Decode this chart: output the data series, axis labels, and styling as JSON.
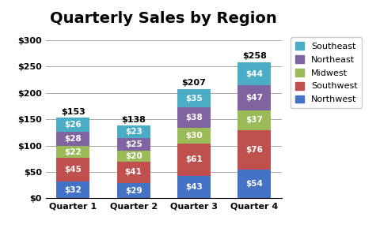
{
  "title": "Quarterly Sales by Region",
  "categories": [
    "Quarter 1",
    "Quarter 2",
    "Quarter 3",
    "Quarter 4"
  ],
  "regions": [
    "Northwest",
    "Southwest",
    "Midwest",
    "Northeast",
    "Southeast"
  ],
  "values": {
    "Northwest": [
      32,
      29,
      43,
      54
    ],
    "Southwest": [
      45,
      41,
      61,
      76
    ],
    "Midwest": [
      22,
      20,
      30,
      37
    ],
    "Northeast": [
      28,
      25,
      38,
      47
    ],
    "Southeast": [
      26,
      23,
      35,
      44
    ]
  },
  "totals": [
    153,
    138,
    207,
    258
  ],
  "colors": {
    "Northwest": "#4472C4",
    "Southwest": "#C0504D",
    "Midwest": "#9BBB59",
    "Northeast": "#8064A2",
    "Southeast": "#4BACC6"
  },
  "ylim": [
    0,
    320
  ],
  "yticks": [
    0,
    50,
    100,
    150,
    200,
    250,
    300
  ],
  "ytick_labels": [
    "$0",
    "$50",
    "$100",
    "$150",
    "$200",
    "$250",
    "$300"
  ],
  "bar_width": 0.55,
  "title_fontsize": 14,
  "label_fontsize": 7.5,
  "total_fontsize": 8,
  "legend_fontsize": 8,
  "tick_fontsize": 8,
  "background_color": "#FFFFFF",
  "grid_color": "#AAAAAA"
}
